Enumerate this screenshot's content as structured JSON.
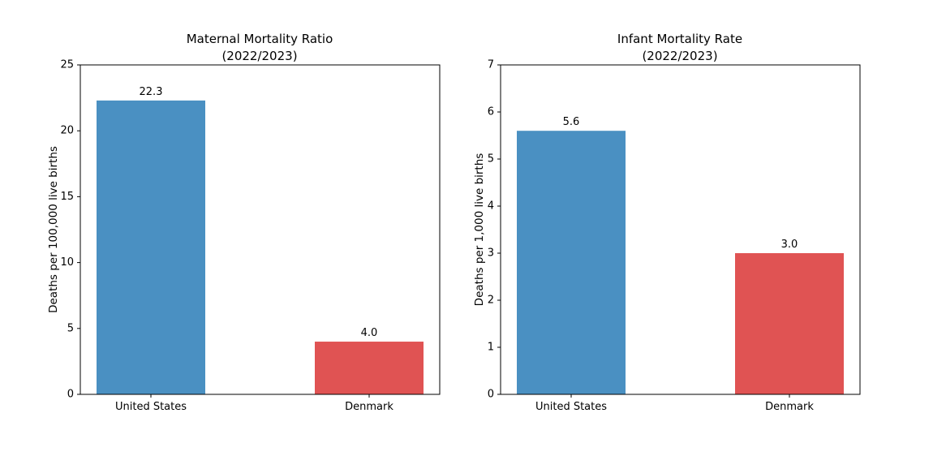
{
  "colors": {
    "united_states": "#4a90c2",
    "denmark": "#e05353",
    "axis": "#000000"
  },
  "chart_data": [
    {
      "type": "bar",
      "title": [
        "Maternal Mortality Ratio",
        "(2022/2023)"
      ],
      "categories": [
        "United States",
        "Denmark"
      ],
      "values": [
        22.3,
        4.0
      ],
      "value_labels": [
        "22.3",
        "4.0"
      ],
      "xlabel": "",
      "ylabel": "Deaths per 100,000 live births",
      "ylim": [
        0,
        25
      ],
      "yticks": [
        0,
        5,
        10,
        15,
        20,
        25
      ],
      "bar_colors": [
        "#4a90c2",
        "#e05353"
      ],
      "grid": false,
      "legend": "none"
    },
    {
      "type": "bar",
      "title": [
        "Infant Mortality Rate",
        "(2022/2023)"
      ],
      "categories": [
        "United States",
        "Denmark"
      ],
      "values": [
        5.6,
        3.0
      ],
      "value_labels": [
        "5.6",
        "3.0"
      ],
      "xlabel": "",
      "ylabel": "Deaths per 1,000 live births",
      "ylim": [
        0,
        7
      ],
      "yticks": [
        0,
        1,
        2,
        3,
        4,
        5,
        6,
        7
      ],
      "bar_colors": [
        "#4a90c2",
        "#e05353"
      ],
      "grid": false,
      "legend": "none"
    }
  ]
}
